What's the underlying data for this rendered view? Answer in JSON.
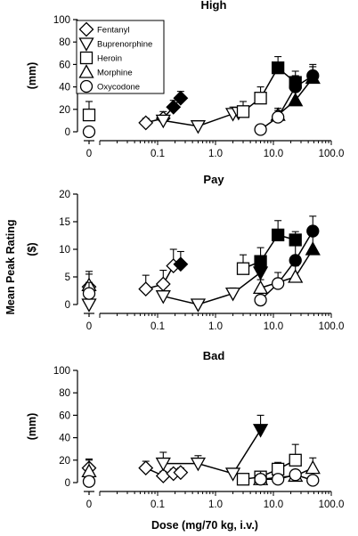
{
  "figure": {
    "shared_ylabel": "Mean Peak Rating",
    "xlabel": "Dose (mg/70 kg, i.v.)"
  },
  "legend": [
    {
      "name": "Fentanyl",
      "marker": "diamond"
    },
    {
      "name": "Buprenorphine",
      "marker": "triangle-down"
    },
    {
      "name": "Heroin",
      "marker": "square"
    },
    {
      "name": "Morphine",
      "marker": "triangle-up"
    },
    {
      "name": "Oxycodone",
      "marker": "circle"
    }
  ],
  "chart_data": [
    {
      "type": "scatter",
      "title": "High",
      "ylabel": "(mm)",
      "xscale": "log",
      "xlim": [
        0.01,
        100
      ],
      "ylim": [
        0,
        100
      ],
      "yticks": [
        0,
        20,
        40,
        60,
        80,
        100
      ],
      "xticks": [
        "0",
        "0.1",
        "1.0",
        "10.0",
        "100.0"
      ],
      "legend_position": "top-left",
      "series": [
        {
          "name": "Fentanyl",
          "marker": "diamond",
          "baseline": {
            "y": null,
            "err": null
          },
          "points": [
            {
              "x": 0.0625,
              "y": 8,
              "err": 4,
              "filled": false
            },
            {
              "x": 0.125,
              "y": 12,
              "err": 6,
              "filled": false
            },
            {
              "x": 0.1875,
              "y": 22,
              "err": 6,
              "filled": true
            },
            {
              "x": 0.25,
              "y": 30,
              "err": 6,
              "filled": true
            }
          ]
        },
        {
          "name": "Buprenorphine",
          "marker": "triangle-down",
          "baseline": {
            "y": null,
            "err": null
          },
          "points": [
            {
              "x": 0.125,
              "y": 10,
              "err": 0,
              "filled": false
            },
            {
              "x": 0.5,
              "y": 5,
              "err": 0,
              "filled": false
            },
            {
              "x": 2,
              "y": 16,
              "err": 6,
              "filled": false
            },
            {
              "x": 2.5,
              "y": 17,
              "err": 4,
              "filled": false
            }
          ]
        },
        {
          "name": "Heroin",
          "marker": "square",
          "baseline": {
            "y": 15,
            "err": 12
          },
          "points": [
            {
              "x": 3,
              "y": 18,
              "err": 9,
              "filled": false
            },
            {
              "x": 6,
              "y": 30,
              "err": 10,
              "filled": false
            },
            {
              "x": 12,
              "y": 57,
              "err": 10,
              "filled": true
            },
            {
              "x": 24,
              "y": 44,
              "err": 10,
              "filled": true
            }
          ]
        },
        {
          "name": "Morphine",
          "marker": "triangle-up",
          "baseline": {
            "y": null,
            "err": null
          },
          "points": [
            {
              "x": 12,
              "y": 15,
              "err": 6,
              "filled": false
            },
            {
              "x": 24,
              "y": 28,
              "err": 8,
              "filled": true
            },
            {
              "x": 48,
              "y": 48,
              "err": 10,
              "filled": true
            }
          ]
        },
        {
          "name": "Oxycodone",
          "marker": "circle",
          "baseline": {
            "y": 0,
            "err": null
          },
          "points": [
            {
              "x": 6,
              "y": 2,
              "err": 0,
              "filled": false
            },
            {
              "x": 12,
              "y": 13,
              "err": 6,
              "filled": false
            },
            {
              "x": 24,
              "y": 40,
              "err": 10,
              "filled": true
            },
            {
              "x": 48,
              "y": 50,
              "err": 10,
              "filled": true
            }
          ]
        }
      ]
    },
    {
      "type": "scatter",
      "title": "Pay",
      "ylabel": "($)",
      "xscale": "log",
      "xlim": [
        0.01,
        100
      ],
      "ylim": [
        0,
        20
      ],
      "yticks": [
        0,
        5,
        10,
        15,
        20
      ],
      "xticks": [
        "0",
        "0.1",
        "1.0",
        "10.0",
        "100.0"
      ],
      "series": [
        {
          "name": "Fentanyl",
          "marker": "diamond",
          "baseline": {
            "y": 3.2,
            "err": 2.8
          },
          "points": [
            {
              "x": 0.0625,
              "y": 2.8,
              "err": 2.5,
              "filled": false
            },
            {
              "x": 0.125,
              "y": 3.7,
              "err": 2.5,
              "filled": false
            },
            {
              "x": 0.1875,
              "y": 7.0,
              "err": 3.0,
              "filled": false
            },
            {
              "x": 0.25,
              "y": 7.3,
              "err": 2.3,
              "filled": true
            }
          ]
        },
        {
          "name": "Buprenorphine",
          "marker": "triangle-down",
          "baseline": {
            "y": 0,
            "err": null
          },
          "points": [
            {
              "x": 0.125,
              "y": 1.5,
              "err": 0,
              "filled": false
            },
            {
              "x": 0.5,
              "y": 0,
              "err": 0,
              "filled": false
            },
            {
              "x": 2,
              "y": 2.0,
              "err": 1.0,
              "filled": false
            },
            {
              "x": 6,
              "y": 5.8,
              "err": 2.0,
              "filled": true
            }
          ]
        },
        {
          "name": "Heroin",
          "marker": "square",
          "baseline": {
            "y": null,
            "err": null
          },
          "points": [
            {
              "x": 3,
              "y": 6.5,
              "err": 2.5,
              "filled": false
            },
            {
              "x": 6,
              "y": 7.8,
              "err": 2.5,
              "filled": true
            },
            {
              "x": 12,
              "y": 12.6,
              "err": 2.6,
              "filled": true
            },
            {
              "x": 24,
              "y": 11.7,
              "err": 1.5,
              "filled": true
            }
          ]
        },
        {
          "name": "Morphine",
          "marker": "triangle-up",
          "baseline": {
            "y": 3.5,
            "err": 2.0
          },
          "points": [
            {
              "x": 6,
              "y": 3.0,
              "err": 1.5,
              "filled": false
            },
            {
              "x": 24,
              "y": 5.0,
              "err": 2.0,
              "filled": false
            },
            {
              "x": 48,
              "y": 10.0,
              "err": 3.0,
              "filled": true
            }
          ]
        },
        {
          "name": "Oxycodone",
          "marker": "circle",
          "baseline": {
            "y": 2.0,
            "err": 2.0
          },
          "points": [
            {
              "x": 6,
              "y": 0.8,
              "err": 0,
              "filled": false
            },
            {
              "x": 12,
              "y": 3.8,
              "err": 2.0,
              "filled": false
            },
            {
              "x": 24,
              "y": 8.0,
              "err": 3.0,
              "filled": true
            },
            {
              "x": 48,
              "y": 13.3,
              "err": 2.7,
              "filled": true
            }
          ]
        }
      ]
    },
    {
      "type": "scatter",
      "title": "Bad",
      "ylabel": "(mm)",
      "xscale": "log",
      "xlim": [
        0.01,
        100
      ],
      "ylim": [
        0,
        100
      ],
      "yticks": [
        0,
        20,
        40,
        60,
        80,
        100
      ],
      "xticks": [
        "0",
        "0.1",
        "1.0",
        "10.0",
        "100.0"
      ],
      "series": [
        {
          "name": "Fentanyl",
          "marker": "diamond",
          "baseline": {
            "y": 13,
            "err": 8
          },
          "points": [
            {
              "x": 0.0625,
              "y": 13,
              "err": 6,
              "filled": false
            },
            {
              "x": 0.125,
              "y": 6,
              "err": 4,
              "filled": false
            },
            {
              "x": 0.1875,
              "y": 8,
              "err": 4,
              "filled": false
            },
            {
              "x": 0.25,
              "y": 9,
              "err": 4,
              "filled": false
            }
          ]
        },
        {
          "name": "Buprenorphine",
          "marker": "triangle-down",
          "baseline": {
            "y": null,
            "err": null
          },
          "points": [
            {
              "x": 0.125,
              "y": 17,
              "err": 10,
              "filled": false
            },
            {
              "x": 0.5,
              "y": 17,
              "err": 7,
              "filled": false
            },
            {
              "x": 2,
              "y": 8,
              "err": 0,
              "filled": false
            },
            {
              "x": 6,
              "y": 47,
              "err": 13,
              "filled": true
            }
          ]
        },
        {
          "name": "Heroin",
          "marker": "square",
          "baseline": {
            "y": null,
            "err": null
          },
          "points": [
            {
              "x": 3,
              "y": 3,
              "err": 0,
              "filled": false
            },
            {
              "x": 6,
              "y": 5,
              "err": 4,
              "filled": false
            },
            {
              "x": 12,
              "y": 12,
              "err": 6,
              "filled": false
            },
            {
              "x": 24,
              "y": 20,
              "err": 14,
              "filled": false
            }
          ]
        },
        {
          "name": "Morphine",
          "marker": "triangle-up",
          "baseline": {
            "y": 10,
            "err": 10
          },
          "points": [
            {
              "x": 6,
              "y": 3,
              "err": 0,
              "filled": false
            },
            {
              "x": 24,
              "y": 6,
              "err": 4,
              "filled": false
            },
            {
              "x": 48,
              "y": 13,
              "err": 9,
              "filled": false
            }
          ]
        },
        {
          "name": "Oxycodone",
          "marker": "circle",
          "baseline": {
            "y": 1,
            "err": null
          },
          "points": [
            {
              "x": 6,
              "y": 3,
              "err": 0,
              "filled": false
            },
            {
              "x": 12,
              "y": 3,
              "err": 0,
              "filled": false
            },
            {
              "x": 24,
              "y": 7,
              "err": 4,
              "filled": false
            },
            {
              "x": 48,
              "y": 2,
              "err": 0,
              "filled": false
            }
          ]
        }
      ]
    }
  ]
}
